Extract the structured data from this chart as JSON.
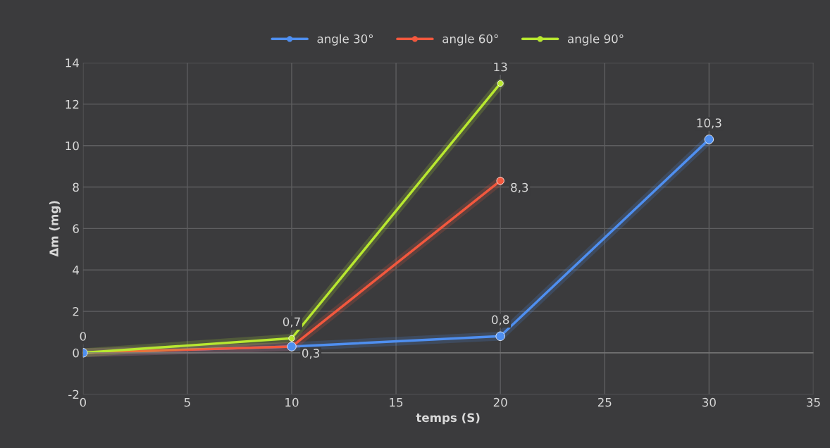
{
  "chart_data": {
    "type": "line",
    "xlabel": "temps (S)",
    "ylabel": "Δm (mg)",
    "xlim": [
      0,
      35
    ],
    "xticks": [
      0,
      5,
      10,
      15,
      20,
      25,
      30,
      35
    ],
    "ylim": [
      -2,
      14
    ],
    "yticks": [
      -2,
      0,
      2,
      4,
      6,
      8,
      10,
      12,
      14
    ],
    "grid": true,
    "legend": "top",
    "marker": "circle",
    "line_style": "solid",
    "series": [
      {
        "name": "angle 30°",
        "color": "#4f8ff0",
        "x": [
          0,
          10,
          20,
          30
        ],
        "values": [
          0,
          0.3,
          0.8,
          10.3
        ],
        "value_labels": [
          null,
          null,
          "0,8",
          "10,3"
        ]
      },
      {
        "name": "angle 60°",
        "color": "#f2583e",
        "x": [
          0,
          10,
          20
        ],
        "values": [
          0,
          0.3,
          8.3
        ],
        "value_labels": [
          null,
          "0,3",
          "8,3"
        ]
      },
      {
        "name": "angle 90°",
        "color": "#b8e830",
        "x": [
          0,
          10,
          20
        ],
        "values": [
          0,
          0.7,
          13
        ],
        "value_labels": [
          "0",
          "0,7",
          "13"
        ]
      }
    ]
  }
}
